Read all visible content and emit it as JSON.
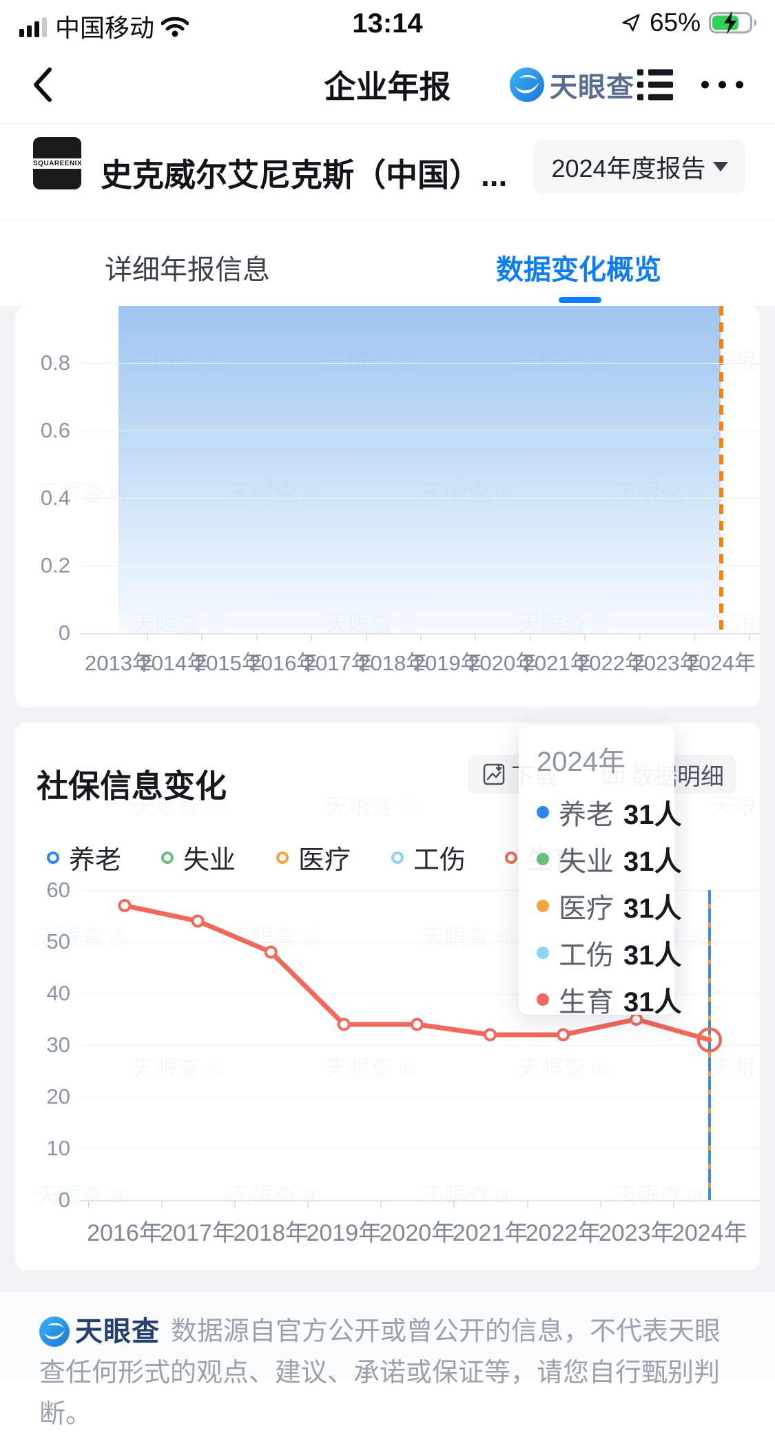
{
  "status_bar": {
    "carrier": "中国移动",
    "time": "13:14",
    "battery": "65%"
  },
  "header": {
    "title": "企业年报",
    "brand": "天眼查"
  },
  "company": {
    "logo_text": "SQUAREENIX",
    "name": "史克威尔艾尼克斯（中国）...",
    "report_selector": "2024年度报告"
  },
  "tabs": [
    {
      "label": "详细年报信息",
      "active": false
    },
    {
      "label": "数据变化概览",
      "active": true
    }
  ],
  "social_card": {
    "title": "社保信息变化",
    "download_label": "下载",
    "detail_label": "数据明细"
  },
  "tooltip": {
    "title": "2024年",
    "rows": [
      {
        "label": "养老",
        "value": "31人"
      },
      {
        "label": "失业",
        "value": "31人"
      },
      {
        "label": "医疗",
        "value": "31人"
      },
      {
        "label": "工伤",
        "value": "31人"
      },
      {
        "label": "生育",
        "value": "31人"
      }
    ]
  },
  "footer": {
    "brand": "天眼查",
    "disclaimer": "数据源自官方公开或曾公开的信息，不代表天眼查任何形式的观点、建议、承诺或保证等，请您自行甄别判断。"
  },
  "watermark": "天眼查 ®",
  "colors": {
    "accent_blue": "#0e7bf7",
    "line_red": "#f2685c",
    "orange_dash": "#f6820f",
    "blue_dash": "#3f8cd8"
  },
  "chart_data": [
    {
      "type": "area",
      "title": "",
      "categories": [
        "2013年",
        "2014年",
        "2015年",
        "2016年",
        "2017年",
        "2018年",
        "2019年",
        "2020年",
        "2021年",
        "2022年",
        "2023年",
        "2024年"
      ],
      "values": [
        1,
        1,
        1,
        1,
        1,
        1,
        1,
        1,
        1,
        1,
        1,
        1
      ],
      "ylim": [
        0,
        1
      ],
      "yticks": [
        0,
        0.2,
        0.4,
        0.6,
        0.8
      ],
      "grid": true,
      "area_color": "#a7cdf3",
      "highlight_line": {
        "x": "2024年",
        "style": "dashed",
        "color": "#f6820f"
      },
      "note": "top of chart cropped by scroll position; flat series estimated at 1 for all years"
    },
    {
      "type": "line",
      "title": "社保信息变化",
      "categories": [
        "2016年",
        "2017年",
        "2018年",
        "2019年",
        "2020年",
        "2021年",
        "2022年",
        "2023年",
        "2024年"
      ],
      "series": [
        {
          "name": "养老",
          "color": "#2c87f0",
          "values": [
            57,
            54,
            48,
            34,
            34,
            32,
            32,
            35,
            31
          ]
        },
        {
          "name": "失业",
          "color": "#68c07a",
          "values": [
            57,
            54,
            48,
            34,
            34,
            32,
            32,
            35,
            31
          ]
        },
        {
          "name": "医疗",
          "color": "#f6a441",
          "values": [
            57,
            54,
            48,
            34,
            34,
            32,
            32,
            35,
            31
          ]
        },
        {
          "name": "工伤",
          "color": "#8bd3f7",
          "values": [
            57,
            54,
            48,
            34,
            34,
            32,
            32,
            35,
            31
          ]
        },
        {
          "name": "生育",
          "color": "#f2685c",
          "values": [
            57,
            54,
            48,
            34,
            34,
            32,
            32,
            35,
            31
          ]
        }
      ],
      "ylim": [
        0,
        60
      ],
      "yticks": [
        0,
        10,
        20,
        30,
        40,
        50,
        60
      ],
      "unit": "人",
      "grid": true,
      "legend_position": "top",
      "highlight_line": {
        "x": "2024年",
        "style": "dashed",
        "color": "#3f8cd8"
      },
      "note": "five series overlap exactly (tooltip shows 31人 for each in 2024); only the red 生育 line is visible on top"
    }
  ]
}
